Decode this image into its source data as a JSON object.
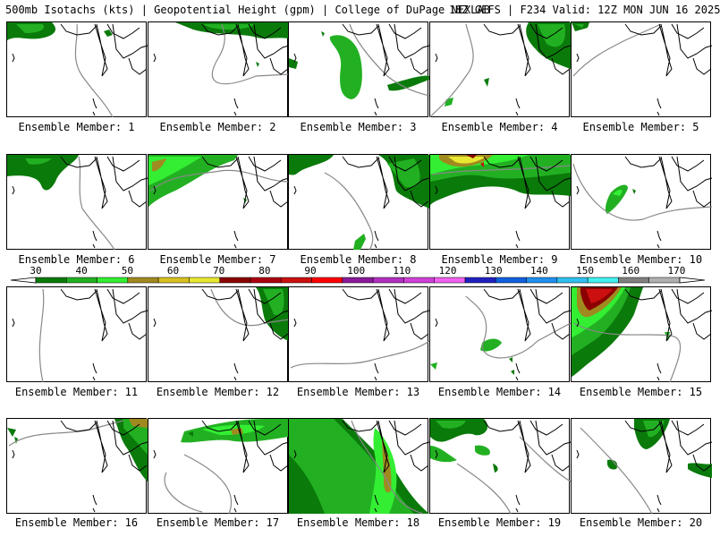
{
  "header": {
    "title": "500mb Isotachs (kts) | Geopotential Height (gpm) | College of DuPage NEXLAB",
    "run_info": "18Z GEFS | F234 Valid: 12Z MON JUN 16 2025"
  },
  "colors": {
    "wind_30": "#0a7a0a",
    "wind_40": "#22b022",
    "wind_50": "#33ee33",
    "wind_60": "#a08a20",
    "wind_70": "#e8e830",
    "wind_80": "#8b0000",
    "wind_90": "#cc1010",
    "wind_100": "#ff0000",
    "outline": "#000000",
    "height_contour": "#888888"
  },
  "legend": {
    "labels": [
      "30",
      "40",
      "50",
      "60",
      "70",
      "80",
      "90",
      "100",
      "110",
      "120",
      "130",
      "140",
      "150",
      "160",
      "170"
    ],
    "colors": [
      "#0a7a0a",
      "#22b022",
      "#33ee33",
      "#a08a20",
      "#d8c020",
      "#e8e830",
      "#8b0000",
      "#aa0010",
      "#cc1010",
      "#ff0000",
      "#8a1a9a",
      "#b030c0",
      "#d040d8",
      "#f060f0",
      "#2020c0",
      "#1060e0",
      "#2090f0",
      "#30c0f0",
      "#40f0f0",
      "#808080",
      "#b0b0b0"
    ]
  },
  "members": [
    {
      "label": "Ensemble Member: 1",
      "max_wind_kts": 50
    },
    {
      "label": "Ensemble Member: 2",
      "max_wind_kts": 50
    },
    {
      "label": "Ensemble Member: 3",
      "max_wind_kts": 50
    },
    {
      "label": "Ensemble Member: 4",
      "max_wind_kts": 50
    },
    {
      "label": "Ensemble Member: 5",
      "max_wind_kts": 40
    },
    {
      "label": "Ensemble Member: 6",
      "max_wind_kts": 40
    },
    {
      "label": "Ensemble Member: 7",
      "max_wind_kts": 60
    },
    {
      "label": "Ensemble Member: 8",
      "max_wind_kts": 50
    },
    {
      "label": "Ensemble Member: 9",
      "max_wind_kts": 80
    },
    {
      "label": "Ensemble Member: 10",
      "max_wind_kts": 50
    },
    {
      "label": "Ensemble Member: 11",
      "max_wind_kts": 30
    },
    {
      "label": "Ensemble Member: 12",
      "max_wind_kts": 50
    },
    {
      "label": "Ensemble Member: 13",
      "max_wind_kts": 30
    },
    {
      "label": "Ensemble Member: 14",
      "max_wind_kts": 40
    },
    {
      "label": "Ensemble Member: 15",
      "max_wind_kts": 90
    },
    {
      "label": "Ensemble Member: 16",
      "max_wind_kts": 60
    },
    {
      "label": "Ensemble Member: 17",
      "max_wind_kts": 60
    },
    {
      "label": "Ensemble Member: 18",
      "max_wind_kts": 60
    },
    {
      "label": "Ensemble Member: 19",
      "max_wind_kts": 50
    },
    {
      "label": "Ensemble Member: 20",
      "max_wind_kts": 50
    }
  ]
}
